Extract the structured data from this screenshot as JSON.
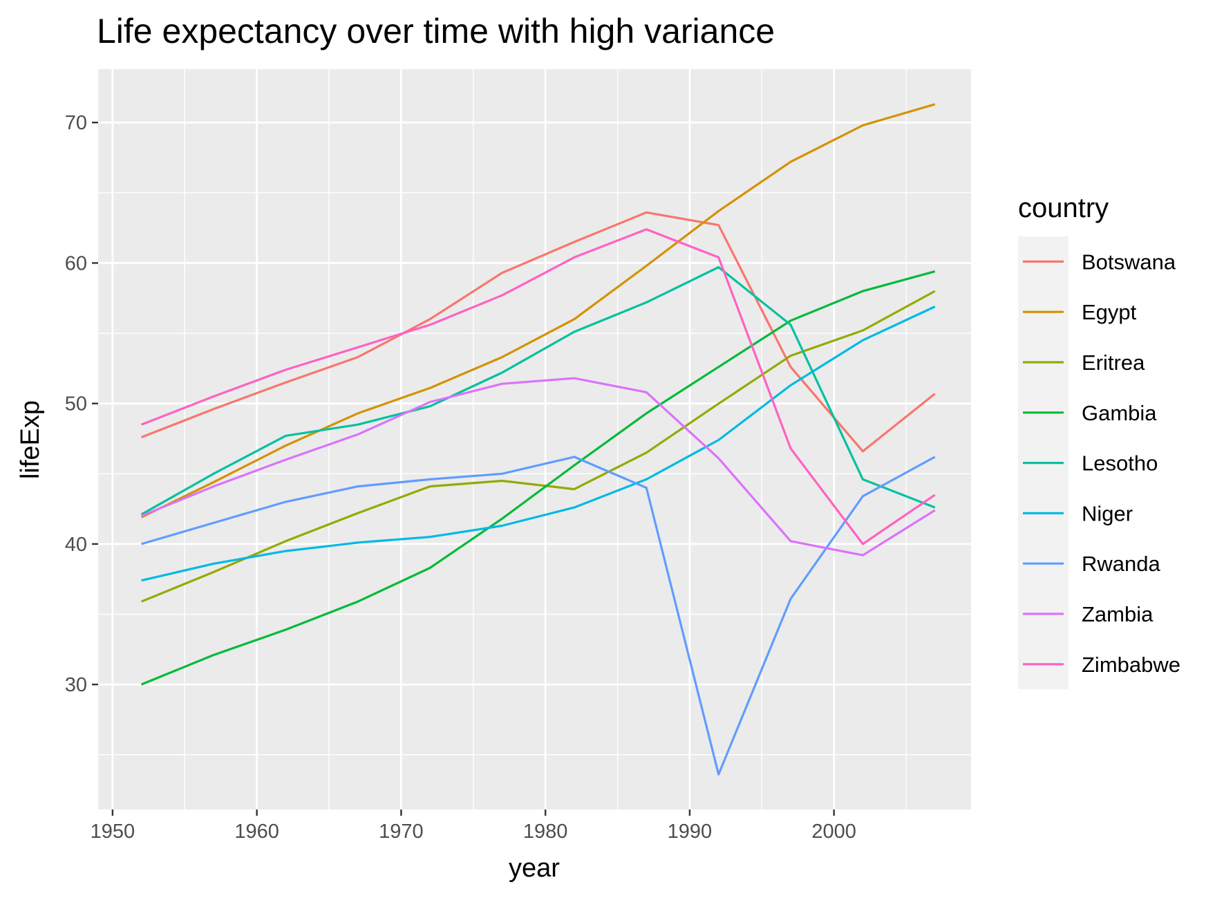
{
  "chart_data": {
    "type": "line",
    "title": "Life expectancy over time with high variance",
    "xlabel": "year",
    "ylabel": "lifeExp",
    "xlim": [
      1949,
      2009.5
    ],
    "ylim": [
      21.1,
      73.8
    ],
    "x_ticks_major": [
      1950,
      1960,
      1970,
      1980,
      1990,
      2000
    ],
    "x_ticks_minor": [
      1955,
      1965,
      1975,
      1985,
      1995,
      2005
    ],
    "y_ticks_major": [
      30,
      40,
      50,
      60,
      70
    ],
    "y_ticks_minor": [
      25,
      35,
      45,
      55,
      65
    ],
    "grid": true,
    "panel_background": "#ebebeb",
    "legend": {
      "title": "country",
      "position": "right"
    },
    "x": [
      1952,
      1957,
      1962,
      1967,
      1972,
      1977,
      1982,
      1987,
      1992,
      1997,
      2002,
      2007
    ],
    "series": [
      {
        "name": "Botswana",
        "color": "#f8766d",
        "values": [
          47.6,
          49.6,
          51.5,
          53.3,
          56.0,
          59.3,
          61.5,
          63.6,
          62.7,
          52.6,
          46.6,
          50.7
        ]
      },
      {
        "name": "Egypt",
        "color": "#d39200",
        "values": [
          41.9,
          44.4,
          47.0,
          49.3,
          51.1,
          53.3,
          56.0,
          59.8,
          63.7,
          67.2,
          69.8,
          71.3
        ]
      },
      {
        "name": "Eritrea",
        "color": "#93aa00",
        "values": [
          35.9,
          38.0,
          40.2,
          42.2,
          44.1,
          44.5,
          43.9,
          46.5,
          49.99,
          53.4,
          55.2,
          58.0
        ]
      },
      {
        "name": "Gambia",
        "color": "#00ba38",
        "values": [
          30.0,
          32.1,
          33.9,
          35.9,
          38.3,
          41.8,
          45.6,
          49.3,
          52.6,
          55.9,
          58.0,
          59.4
        ]
      },
      {
        "name": "Lesotho",
        "color": "#00c19f",
        "values": [
          42.1,
          45.0,
          47.7,
          48.5,
          49.8,
          52.2,
          55.1,
          57.2,
          59.7,
          55.6,
          44.6,
          42.6
        ]
      },
      {
        "name": "Niger",
        "color": "#00b9e3",
        "values": [
          37.4,
          38.6,
          39.5,
          40.1,
          40.5,
          41.3,
          42.6,
          44.6,
          47.4,
          51.3,
          54.5,
          56.9
        ]
      },
      {
        "name": "Rwanda",
        "color": "#619cff",
        "values": [
          40.0,
          41.5,
          43.0,
          44.1,
          44.6,
          45.0,
          46.2,
          44.0,
          23.6,
          36.1,
          43.4,
          46.2
        ]
      },
      {
        "name": "Zambia",
        "color": "#db72fb",
        "values": [
          42.0,
          44.1,
          46.0,
          47.8,
          50.1,
          51.4,
          51.8,
          50.8,
          46.1,
          40.2,
          39.2,
          42.4
        ]
      },
      {
        "name": "Zimbabwe",
        "color": "#ff61c3",
        "values": [
          48.5,
          50.5,
          52.4,
          54.0,
          55.6,
          57.7,
          60.4,
          62.4,
          60.4,
          46.8,
          40.0,
          43.5
        ]
      }
    ]
  }
}
